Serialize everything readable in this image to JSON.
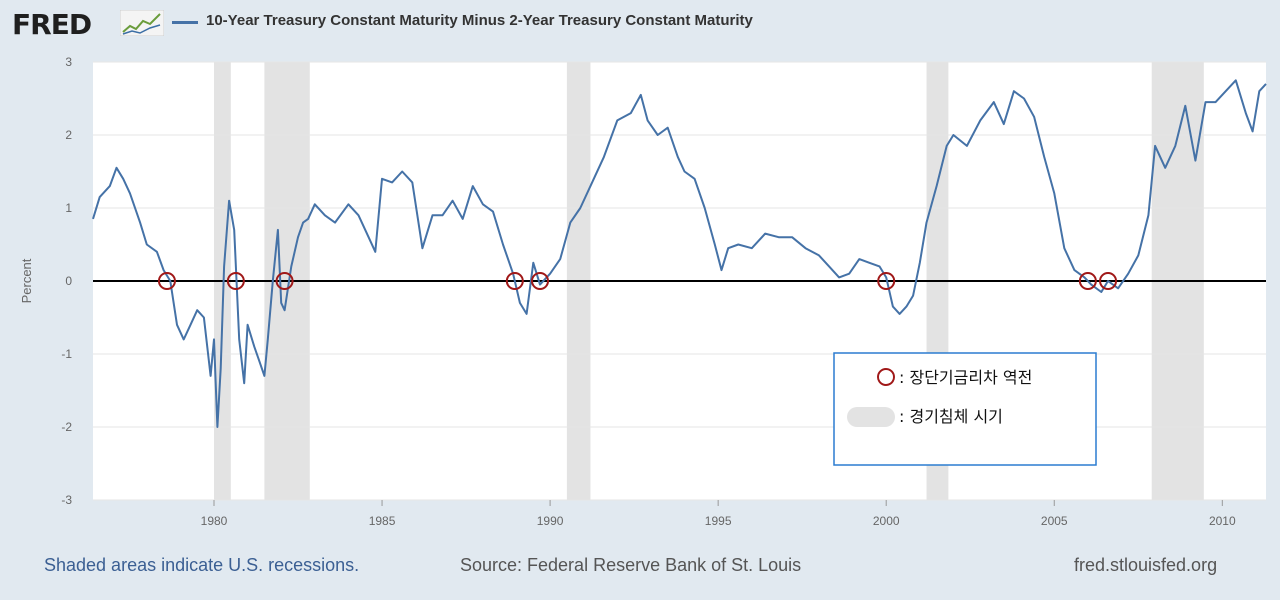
{
  "header": {
    "logo": "FRED",
    "title": "10-Year Treasury Constant Maturity Minus 2-Year Treasury Constant Maturity"
  },
  "footer": {
    "note": "Shaded areas indicate U.S. recessions.",
    "source": "Source: Federal Reserve Bank of St. Louis",
    "site": "fred.stlouisfed.org"
  },
  "legend": {
    "inversion": ": 장단기금리차 역전",
    "recession": ": 경기침체 시기"
  },
  "colors": {
    "series": "#4572a7",
    "marker": "#a01818",
    "legend_border": "#2b7cd0",
    "recession": "#e3e3e3"
  },
  "chart_data": {
    "type": "line",
    "title": "10-Year Treasury Constant Maturity Minus 2-Year Treasury Constant Maturity",
    "xlabel": "",
    "ylabel": "Percent",
    "xlim": [
      1976.4,
      2011.3
    ],
    "ylim": [
      -3,
      3
    ],
    "y_ticks": [
      3,
      2,
      1,
      0,
      -1,
      -2,
      -3
    ],
    "x_ticks": [
      1980,
      1985,
      1990,
      1995,
      2000,
      2005,
      2010
    ],
    "grid": true,
    "reference_line": 0,
    "recessions": [
      [
        1980.0,
        1980.5
      ],
      [
        1981.5,
        1982.85
      ],
      [
        1990.5,
        1991.2
      ],
      [
        2001.2,
        2001.85
      ],
      [
        2007.9,
        2009.45
      ]
    ],
    "inversion_markers": [
      1978.6,
      1980.65,
      1982.1,
      1988.95,
      1989.7,
      2000.0,
      2006.0,
      2006.6
    ],
    "series": [
      {
        "name": "10-Year Treasury Constant Maturity Minus 2-Year Treasury Constant Maturity",
        "x": [
          1976.4,
          1976.6,
          1976.9,
          1977.1,
          1977.3,
          1977.5,
          1977.8,
          1978.0,
          1978.3,
          1978.5,
          1978.7,
          1978.9,
          1979.1,
          1979.3,
          1979.5,
          1979.7,
          1979.9,
          1980.0,
          1980.1,
          1980.2,
          1980.3,
          1980.45,
          1980.6,
          1980.75,
          1980.9,
          1981.0,
          1981.2,
          1981.35,
          1981.5,
          1981.6,
          1981.75,
          1981.9,
          1982.0,
          1982.1,
          1982.3,
          1982.5,
          1982.65,
          1982.8,
          1983.0,
          1983.3,
          1983.6,
          1984.0,
          1984.3,
          1984.6,
          1984.8,
          1985.0,
          1985.3,
          1985.6,
          1985.9,
          1986.2,
          1986.5,
          1986.8,
          1987.1,
          1987.4,
          1987.7,
          1988.0,
          1988.3,
          1988.6,
          1988.9,
          1989.1,
          1989.3,
          1989.5,
          1989.7,
          1990.0,
          1990.3,
          1990.6,
          1990.9,
          1991.3,
          1991.6,
          1992.0,
          1992.4,
          1992.7,
          1992.9,
          1993.2,
          1993.5,
          1993.8,
          1994.0,
          1994.3,
          1994.6,
          1994.9,
          1995.1,
          1995.3,
          1995.6,
          1996.0,
          1996.4,
          1996.8,
          1997.2,
          1997.6,
          1998.0,
          1998.3,
          1998.6,
          1998.9,
          1999.2,
          1999.5,
          1999.8,
          2000.0,
          2000.2,
          2000.4,
          2000.6,
          2000.8,
          2001.0,
          2001.2,
          2001.5,
          2001.8,
          2002.0,
          2002.4,
          2002.8,
          2003.2,
          2003.5,
          2003.8,
          2004.1,
          2004.4,
          2004.7,
          2005.0,
          2005.3,
          2005.6,
          2005.9,
          2006.1,
          2006.4,
          2006.6,
          2006.9,
          2007.2,
          2007.5,
          2007.8,
          2008.0,
          2008.3,
          2008.6,
          2008.9,
          2009.2,
          2009.5,
          2009.8,
          2010.1,
          2010.4,
          2010.7,
          2010.9,
          2011.1,
          2011.3
        ],
        "values": [
          0.85,
          1.15,
          1.3,
          1.55,
          1.4,
          1.2,
          0.8,
          0.5,
          0.4,
          0.15,
          0.0,
          -0.6,
          -0.8,
          -0.6,
          -0.4,
          -0.5,
          -1.3,
          -0.8,
          -2.0,
          -1.2,
          0.2,
          1.1,
          0.7,
          -0.8,
          -1.4,
          -0.6,
          -0.9,
          -1.1,
          -1.3,
          -0.8,
          0.0,
          0.7,
          -0.3,
          -0.4,
          0.2,
          0.6,
          0.8,
          0.85,
          1.05,
          0.9,
          0.8,
          1.05,
          0.9,
          0.6,
          0.4,
          1.4,
          1.35,
          1.5,
          1.35,
          0.45,
          0.9,
          0.9,
          1.1,
          0.85,
          1.3,
          1.05,
          0.95,
          0.5,
          0.1,
          -0.3,
          -0.45,
          0.25,
          -0.05,
          0.1,
          0.3,
          0.8,
          1.0,
          1.4,
          1.7,
          2.2,
          2.3,
          2.55,
          2.2,
          2.0,
          2.1,
          1.7,
          1.5,
          1.4,
          1.0,
          0.5,
          0.15,
          0.45,
          0.5,
          0.45,
          0.65,
          0.6,
          0.6,
          0.45,
          0.35,
          0.2,
          0.05,
          0.1,
          0.3,
          0.25,
          0.2,
          0.05,
          -0.35,
          -0.45,
          -0.35,
          -0.2,
          0.25,
          0.8,
          1.3,
          1.85,
          2.0,
          1.85,
          2.2,
          2.45,
          2.15,
          2.6,
          2.5,
          2.25,
          1.7,
          1.2,
          0.45,
          0.15,
          0.05,
          -0.05,
          -0.15,
          0.0,
          -0.1,
          0.1,
          0.35,
          0.9,
          1.85,
          1.55,
          1.85,
          2.4,
          1.65,
          2.45,
          2.45,
          2.6,
          2.75,
          2.3,
          2.05,
          2.6,
          2.7
        ]
      }
    ]
  }
}
